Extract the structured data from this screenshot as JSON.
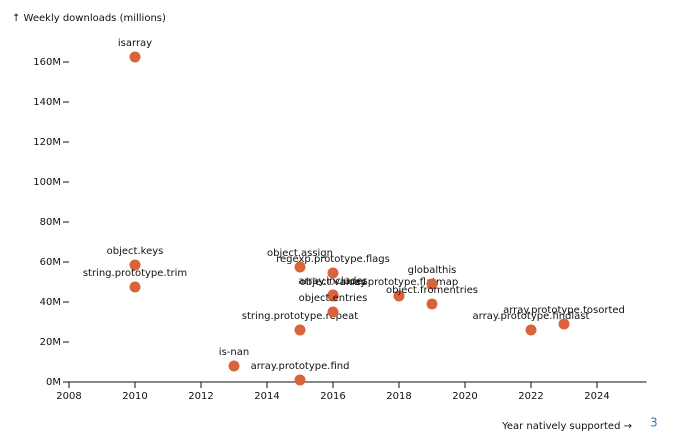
{
  "chart_data": {
    "type": "scatter",
    "y_label": "↑ Weekly downloads (millions)",
    "x_label": "Year natively supported →",
    "footnote": "3",
    "color": "#d9633a",
    "point_labels": [
      "isarray",
      "object.keys",
      "string.prototype.trim",
      "is-nan",
      "array.prototype.find",
      "object.assign",
      "string.prototype.repeat",
      "regexp.prototype.flags",
      "array.includes",
      "object.values",
      "object.entries",
      "array.prototype.flatmap",
      "globalthis",
      "object.fromentries",
      "array.prototype.findlast",
      "array.prototype.tosorted"
    ],
    "x": [
      2010,
      2010,
      2010,
      2013,
      2015,
      2015,
      2015,
      2016,
      2016,
      2016,
      2016,
      2018,
      2019,
      2019,
      2022,
      2023
    ],
    "values": [
      162.5,
      58.5,
      47.5,
      8,
      1,
      57.5,
      26,
      54.5,
      43.5,
      43,
      35,
      43,
      49,
      39,
      26,
      29
    ],
    "xlim": [
      2008,
      2025.5
    ],
    "ylim": [
      0,
      170
    ],
    "xticks": [
      2008,
      2010,
      2012,
      2014,
      2016,
      2018,
      2020,
      2022,
      2024
    ],
    "yticks": [
      {
        "value": 0,
        "label": "0M"
      },
      {
        "value": 20,
        "label": "20M"
      },
      {
        "value": 40,
        "label": "40M"
      },
      {
        "value": 60,
        "label": "60M"
      },
      {
        "value": 80,
        "label": "80M"
      },
      {
        "value": 100,
        "label": "100M"
      },
      {
        "value": 120,
        "label": "120M"
      },
      {
        "value": 140,
        "label": "140M"
      },
      {
        "value": 160,
        "label": "160M"
      }
    ]
  }
}
